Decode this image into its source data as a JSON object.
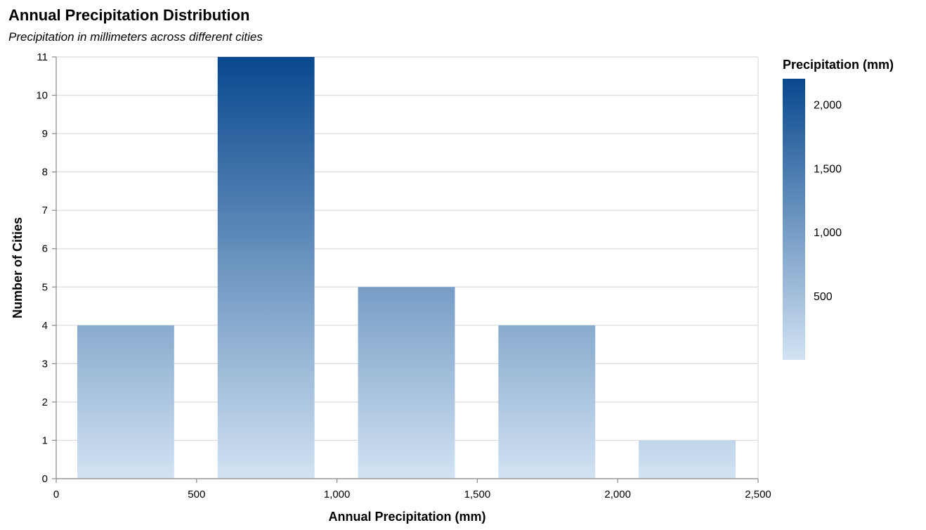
{
  "chart_data": {
    "type": "bar",
    "title": "Annual Precipitation Distribution",
    "subtitle": "Precipitation in millimeters across different cities",
    "xlabel": "Annual Precipitation (mm)",
    "ylabel": "Number of Cities",
    "xlim": [
      0,
      2500
    ],
    "ylim": [
      0,
      11
    ],
    "x_ticks": [
      0,
      500,
      1000,
      1500,
      2000,
      2500
    ],
    "x_tick_labels": [
      "0",
      "500",
      "1,000",
      "1,500",
      "2,000",
      "2,500"
    ],
    "y_ticks": [
      0,
      1,
      2,
      3,
      4,
      5,
      6,
      7,
      8,
      9,
      10,
      11
    ],
    "y_tick_labels": [
      "0",
      "1",
      "2",
      "3",
      "4",
      "5",
      "6",
      "7",
      "8",
      "9",
      "10",
      "11"
    ],
    "grid": true,
    "bins": [
      {
        "x0": 75,
        "x1": 420,
        "count": 4
      },
      {
        "x0": 575,
        "x1": 920,
        "count": 11
      },
      {
        "x0": 1075,
        "x1": 1420,
        "count": 5
      },
      {
        "x0": 1575,
        "x1": 1920,
        "count": 4
      },
      {
        "x0": 2075,
        "x1": 2420,
        "count": 1
      }
    ],
    "legend": {
      "title": "Precipitation (mm)",
      "placement": "right",
      "domain": [
        0,
        2200
      ],
      "ticks": [
        500,
        1000,
        1500,
        2000
      ],
      "tick_labels": [
        "500",
        "1,000",
        "1,500",
        "2,000"
      ],
      "color_low": "#d2e3f3",
      "color_high": "#08488e"
    }
  }
}
